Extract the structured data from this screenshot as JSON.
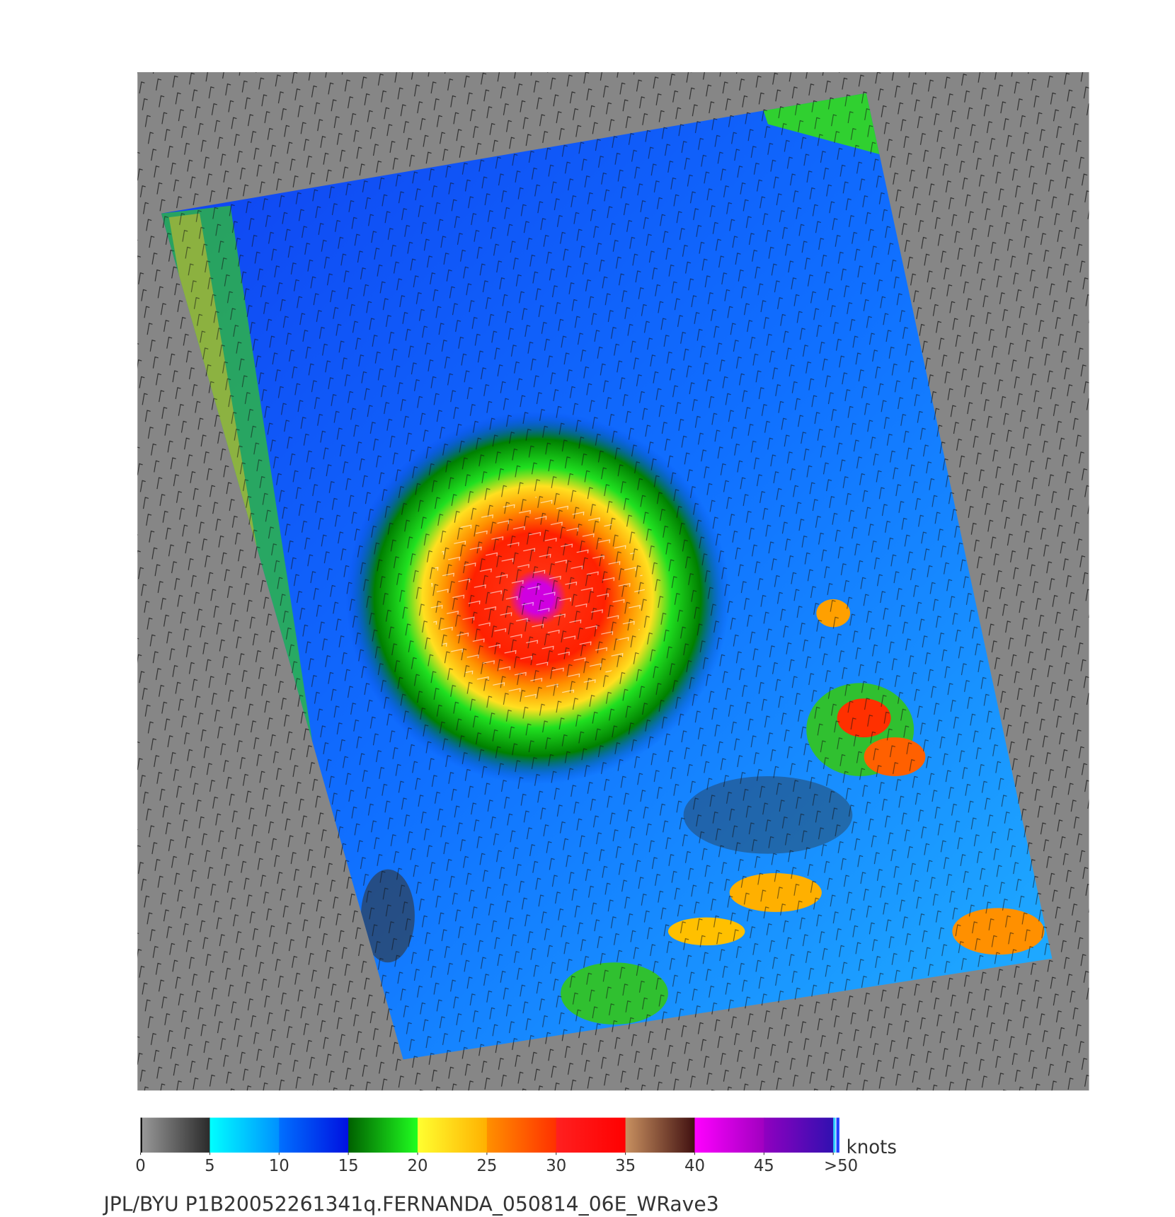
{
  "colorbar": {
    "unit": "knots",
    "range": [
      0,
      50
    ],
    "ticks": [
      0,
      5,
      10,
      15,
      20,
      25,
      30,
      35,
      40,
      45,
      {
        "value": 50,
        "label": ">50"
      }
    ],
    "colors": [
      [
        "#9a9a9a",
        "#2a2a2a"
      ],
      [
        "#00ffff",
        "#0090ff"
      ],
      [
        "#0070ff",
        "#0010e0"
      ],
      [
        "#006000",
        "#20ff20"
      ],
      [
        "#ffff30",
        "#ffb000"
      ],
      [
        "#ff9000",
        "#ff3000"
      ],
      [
        "#ff2020",
        "#ff0000"
      ],
      [
        "#c89060",
        "#401010"
      ],
      [
        "#ff00ff",
        "#a000c0"
      ],
      [
        "#9000c0",
        "#3010b0"
      ]
    ]
  },
  "footer": "JPL/BYU  P1B20052261341q.FERNANDA_050814_06E_WRave3"
}
